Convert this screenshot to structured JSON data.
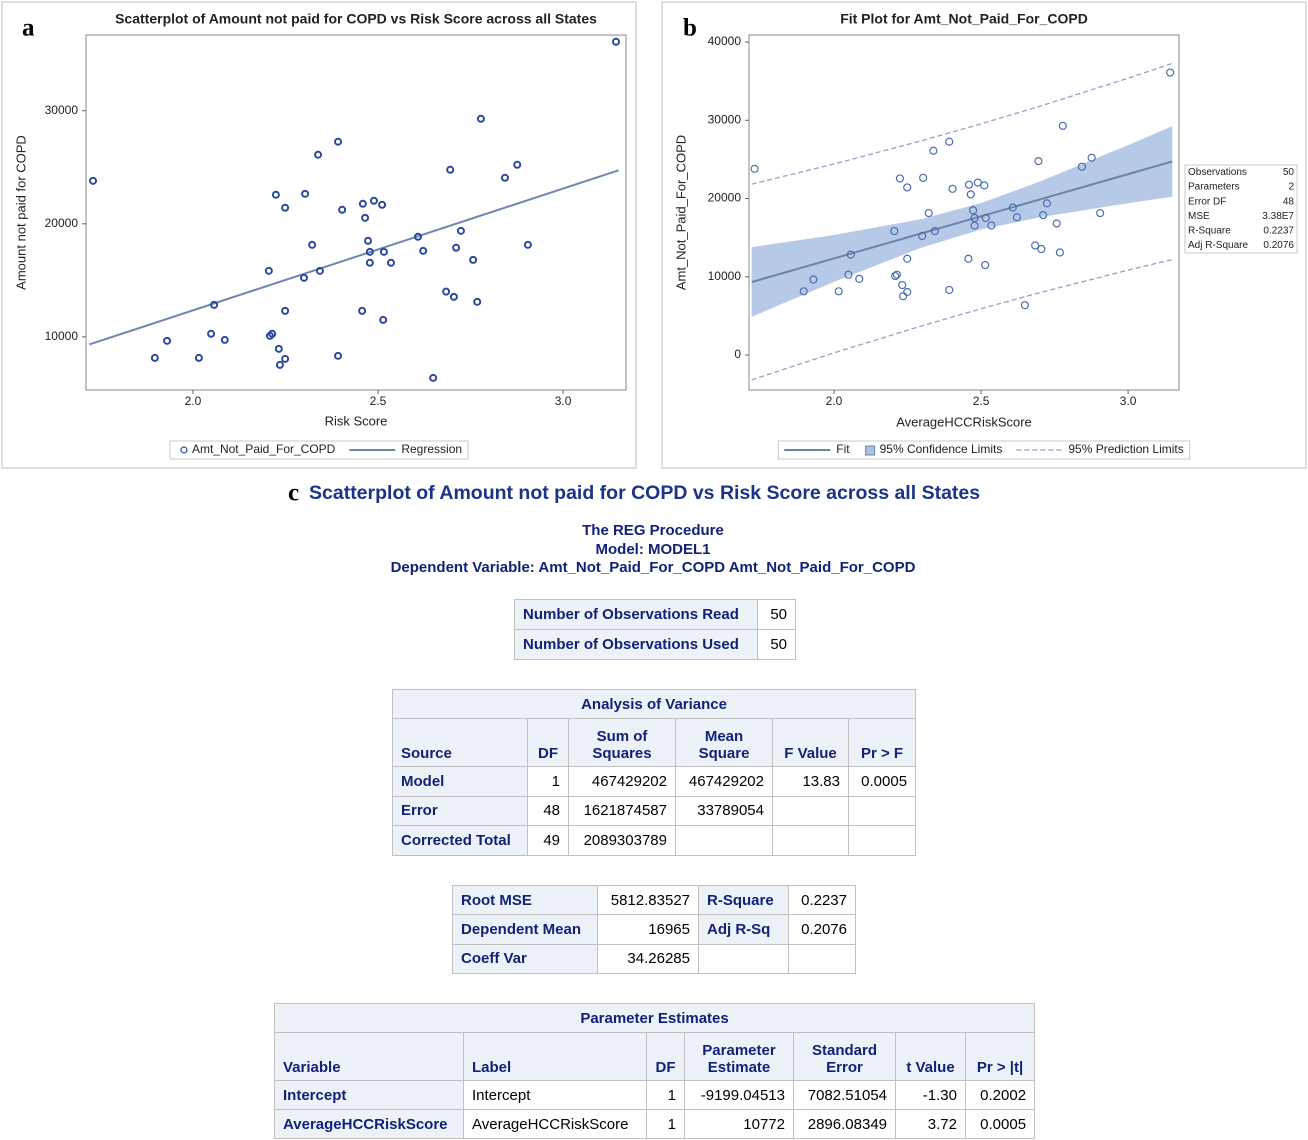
{
  "panels": [
    "a",
    "b",
    "c"
  ],
  "chart_data": [
    {
      "type": "scatter",
      "title": "Scatterplot of Amount not paid for COPD vs Risk Score across all States",
      "x_label": "Risk Score",
      "y_label": "Amount not paid for COPD",
      "xlim": [
        1.711,
        3.17
      ],
      "ylim": [
        5300,
        36700
      ],
      "xticks": [
        {
          "value": 2,
          "label": "2.0"
        },
        {
          "value": 2.5,
          "label": "2.5"
        },
        {
          "value": 3,
          "label": "3.0"
        }
      ],
      "yticks": [
        10000,
        20000,
        30000
      ],
      "legend": "bottom",
      "series": [
        {
          "name": "Amt_Not_Paid_For_COPD",
          "kind": "points",
          "color": "#2b4a9a",
          "x": [
            1.73,
            1.897,
            1.93,
            2.016,
            2.049,
            2.057,
            2.086,
            2.205,
            2.208,
            2.214,
            2.224,
            2.232,
            2.235,
            2.249,
            2.249,
            2.249,
            2.3,
            2.303,
            2.322,
            2.338,
            2.343,
            2.392,
            2.392,
            2.403,
            2.457,
            2.459,
            2.465,
            2.473,
            2.478,
            2.478,
            2.489,
            2.511,
            2.514,
            2.516,
            2.535,
            2.608,
            2.622,
            2.649,
            2.684,
            2.695,
            2.705,
            2.711,
            2.724,
            2.757,
            2.768,
            2.778,
            2.843,
            2.876,
            2.905,
            3.143
          ],
          "values": [
            23800,
            8140,
            9650,
            8140,
            10270,
            12830,
            9730,
            15840,
            10090,
            10270,
            22570,
            8940,
            7520,
            8050,
            21420,
            12300,
            15220,
            22650,
            18140,
            26110,
            15840,
            27260,
            8320,
            21240,
            12300,
            21770,
            20530,
            18500,
            17520,
            16550,
            22040,
            21680,
            11500,
            17520,
            16550,
            18850,
            17610,
            6370,
            14000,
            24780,
            13540,
            17880,
            19380,
            16810,
            13100,
            29290,
            24070,
            25220,
            18140,
            36100
          ]
        },
        {
          "name": "Regression",
          "kind": "line",
          "color": "#6f87b0",
          "x": [
            1.72,
            3.15
          ],
          "values": [
            9329,
            24733
          ]
        }
      ]
    },
    {
      "type": "scatter",
      "title": "Fit Plot for Amt_Not_Paid_For_COPD",
      "x_label": "AverageHCCRiskScore",
      "y_label": "Amt_Not_Paid_For_COPD",
      "xlim": [
        1.711,
        3.173
      ],
      "ylim": [
        -4470,
        40900
      ],
      "xticks": [
        {
          "value": 2,
          "label": "2.0"
        },
        {
          "value": 2.5,
          "label": "2.5"
        },
        {
          "value": 3,
          "label": "3.0"
        }
      ],
      "yticks": [
        0,
        10000,
        20000,
        30000,
        40000
      ],
      "legend": "bottom",
      "series": [
        {
          "kind": "points",
          "color": "#4c6db3",
          "x": [
            1.73,
            1.897,
            1.93,
            2.016,
            2.049,
            2.057,
            2.086,
            2.205,
            2.208,
            2.214,
            2.224,
            2.232,
            2.235,
            2.249,
            2.249,
            2.249,
            2.3,
            2.303,
            2.322,
            2.338,
            2.343,
            2.392,
            2.392,
            2.403,
            2.457,
            2.459,
            2.465,
            2.473,
            2.478,
            2.478,
            2.489,
            2.511,
            2.514,
            2.516,
            2.535,
            2.608,
            2.622,
            2.649,
            2.684,
            2.695,
            2.705,
            2.711,
            2.724,
            2.757,
            2.768,
            2.778,
            2.843,
            2.876,
            2.905,
            3.143
          ],
          "values": [
            23800,
            8140,
            9650,
            8140,
            10270,
            12830,
            9730,
            15840,
            10090,
            10270,
            22570,
            8940,
            7520,
            8050,
            21420,
            12300,
            15220,
            22650,
            18140,
            26110,
            15840,
            27260,
            8320,
            21240,
            12300,
            21770,
            20530,
            18500,
            17520,
            16550,
            22040,
            21680,
            11500,
            17520,
            16550,
            18850,
            17610,
            6370,
            14000,
            24780,
            13540,
            17880,
            19380,
            16810,
            13100,
            29290,
            24070,
            25220,
            18140,
            36100
          ]
        },
        {
          "name": "Fit",
          "kind": "line",
          "color": "#6b82aa",
          "x": [
            1.72,
            2.0,
            2.3,
            2.5,
            2.7,
            3.0,
            3.15
          ],
          "values": [
            9329,
            12345,
            15577,
            17731,
            19885,
            23117,
            24733
          ]
        },
        {
          "name": "95% Confidence Limits",
          "kind": "band",
          "color": "#a9c1e3",
          "x": [
            1.72,
            2.0,
            2.3,
            2.5,
            2.7,
            3.0,
            3.15
          ],
          "lower": [
            4882,
            9349,
            13761,
            16035,
            17600,
            19403,
            20221
          ],
          "upper": [
            13778,
            15341,
            17393,
            19427,
            22170,
            26831,
            29245
          ]
        },
        {
          "name": "95% Prediction Limits",
          "kind": "limits",
          "color": "#9d9ccf",
          "x": [
            1.72,
            2.0,
            2.3,
            2.5,
            2.7,
            3.0,
            3.15
          ],
          "lower": [
            -3178,
            278,
            3747,
            5918,
            7974,
            10852,
            12201
          ],
          "upper": [
            21838,
            24412,
            27407,
            29544,
            31796,
            35382,
            37265
          ]
        }
      ],
      "fit_statistics": [
        [
          "Observations",
          50
        ],
        [
          "Parameters",
          2
        ],
        [
          "Error DF",
          48
        ],
        [
          "MSE",
          "3.38E7"
        ],
        [
          "R-Square",
          0.2237
        ],
        [
          "Adj R-Square",
          0.2076
        ]
      ]
    }
  ],
  "report": {
    "title": "Scatterplot of Amount not paid for COPD vs Risk Score across all States",
    "procedure_lines": [
      "The REG Procedure",
      "Model: MODEL1",
      "Dependent Variable: Amt_Not_Paid_For_COPD Amt_Not_Paid_For_COPD"
    ],
    "tables": [
      {
        "rows": [
          [
            "Number of Observations Read",
            50
          ],
          [
            "Number of Observations Used",
            50
          ]
        ],
        "row_header_cols": [
          0
        ]
      },
      {
        "title": "Analysis of Variance",
        "header": [
          "Source",
          "DF",
          [
            "Sum of",
            "Squares"
          ],
          [
            "Mean",
            "Square"
          ],
          "F Value",
          "Pr > F"
        ],
        "rows": [
          [
            "Model",
            1,
            467429202,
            467429202,
            13.83,
            0.0005
          ],
          [
            "Error",
            48,
            1621874587,
            33789054,
            null,
            null
          ],
          [
            "Corrected Total",
            49,
            2089303789,
            null,
            null,
            null
          ]
        ],
        "row_header_cols": [
          0
        ]
      },
      {
        "rows": [
          [
            "Root MSE",
            5812.83527,
            "R-Square",
            0.2237
          ],
          [
            "Dependent Mean",
            16965,
            "Adj R-Sq",
            0.2076
          ],
          [
            "Coeff Var",
            34.26285,
            null,
            null
          ]
        ],
        "row_header_cols": [
          0,
          2
        ]
      },
      {
        "title": "Parameter Estimates",
        "header": [
          "Variable",
          "Label",
          "DF",
          [
            "Parameter",
            "Estimate"
          ],
          [
            "Standard",
            "Error"
          ],
          "t Value",
          "Pr > |t|"
        ],
        "rows": [
          [
            "Intercept",
            "Intercept",
            1,
            -9199.04513,
            7082.51054,
            "-1.30",
            0.2002
          ],
          [
            "AverageHCCRiskScore",
            "AverageHCCRiskScore",
            1,
            10772,
            2896.08349,
            3.72,
            0.0005
          ]
        ],
        "row_header_cols": [
          0
        ]
      }
    ]
  }
}
